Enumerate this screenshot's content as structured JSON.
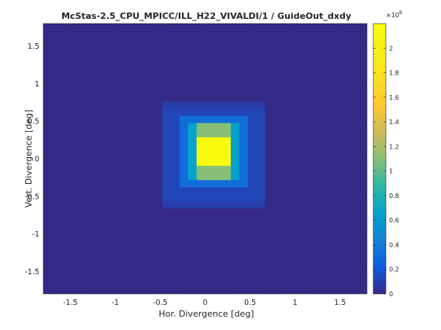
{
  "chart_data": {
    "type": "heatmap",
    "title": "McStas-2.5_CPU_MPICC/ILL_H22_VIVALDI/1 / GuideOut_dxdy",
    "xlabel": "Hor. Divergence [deg]",
    "ylabel": "Vert. Divergence [deg]",
    "xlim": [
      -1.8,
      1.8
    ],
    "ylim": [
      -1.8,
      1.8
    ],
    "xticks": [
      -1.5,
      -1,
      -0.5,
      0,
      0.5,
      1,
      1.5
    ],
    "xtick_labels": [
      "-1.5",
      "-1",
      "-0.5",
      "0",
      "0.5",
      "1",
      "1.5"
    ],
    "yticks": [
      1.5,
      1,
      0.5,
      0,
      -0.5,
      -1,
      -1.5
    ],
    "ytick_labels": [
      "1.5",
      "1",
      "0.5",
      "0",
      "-0.5",
      "-1",
      "-1.5"
    ],
    "colorbar": {
      "exponent_label": "×10",
      "exponent_power": "8",
      "multiplier": 100000000,
      "range": [
        0,
        2.2
      ],
      "ticks": [
        0,
        0.2,
        0.4,
        0.6,
        0.8,
        1,
        1.2,
        1.4,
        1.6,
        1.8,
        2
      ],
      "tick_labels": [
        "0",
        "0.2",
        "0.4",
        "0.6",
        "0.8",
        "1",
        "1.2",
        "1.4",
        "1.6",
        "1.8",
        "2"
      ]
    },
    "colormap": "parula",
    "grid": false,
    "cell_size_deg": 0.095,
    "background_value": 0.0,
    "cells": [
      {
        "x": [
          -0.475,
          0.665
        ],
        "y": [
          -0.665,
          0.76
        ],
        "value": 0.08
      },
      {
        "x": [
          -0.475,
          0.665
        ],
        "y": [
          -0.57,
          0.665
        ],
        "value": 0.12
      },
      {
        "x": [
          -0.285,
          0.475
        ],
        "y": [
          -0.38,
          0.57
        ],
        "value": 0.32
      },
      {
        "x": [
          -0.19,
          0.38
        ],
        "y": [
          -0.285,
          0.475
        ],
        "value": 0.65
      },
      {
        "x": [
          -0.095,
          0.285
        ],
        "y": [
          -0.285,
          0.475
        ],
        "value": 1.1
      },
      {
        "x": [
          -0.095,
          0.285
        ],
        "y": [
          -0.095,
          0.285
        ],
        "value": 2.2
      }
    ]
  }
}
